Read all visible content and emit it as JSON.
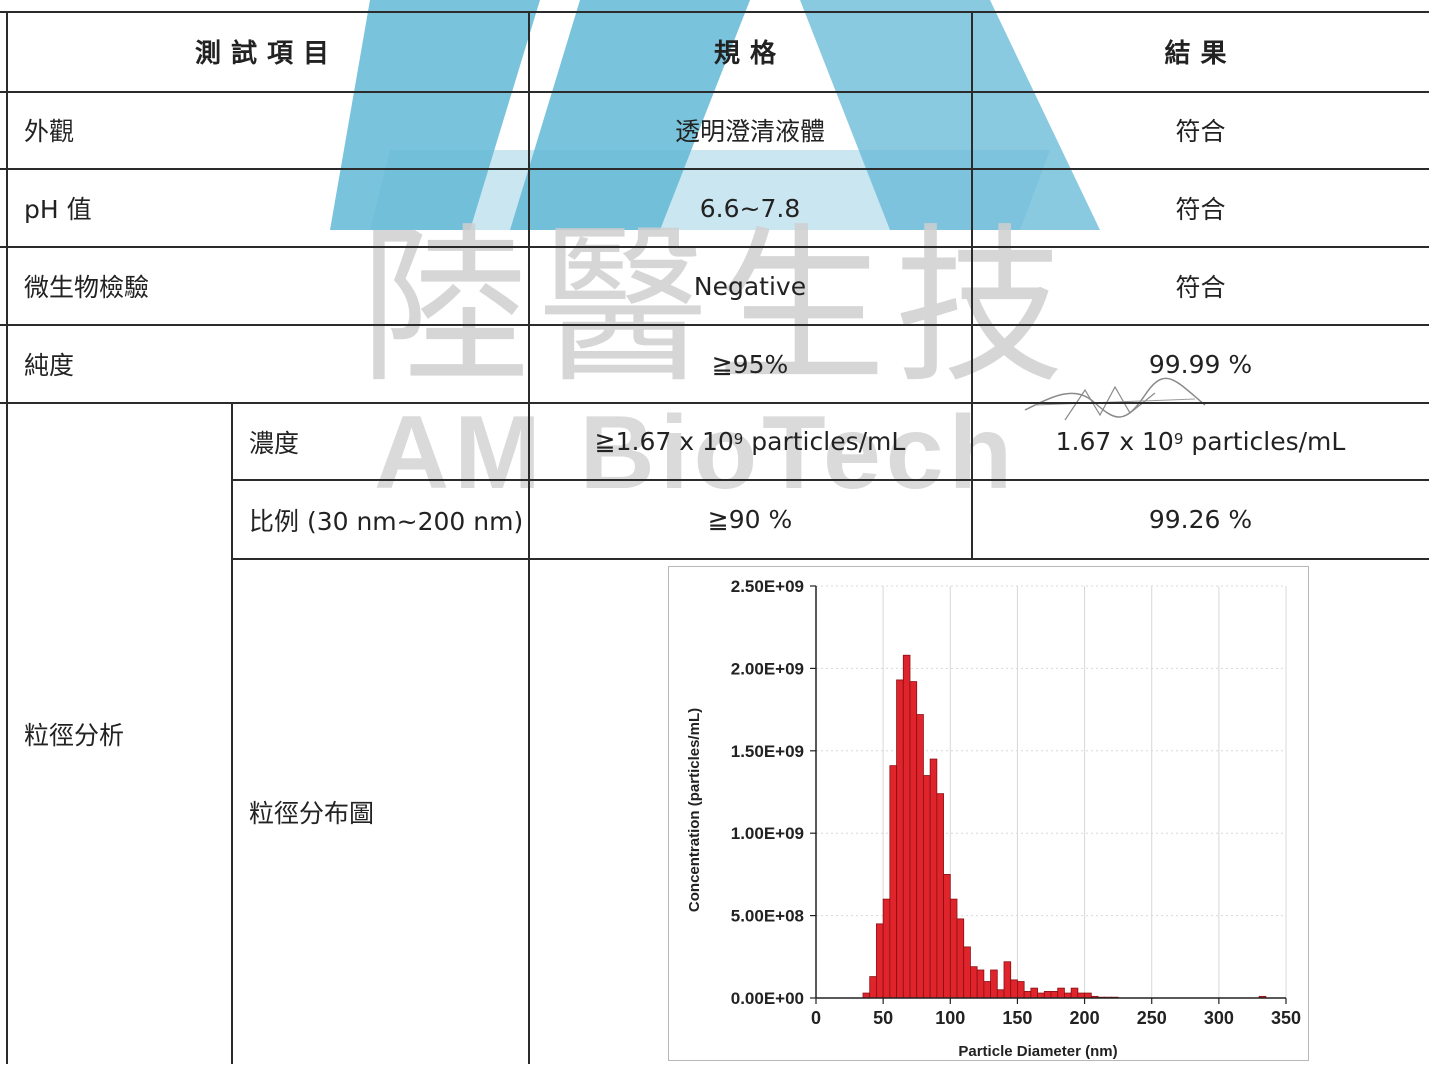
{
  "watermark": {
    "cjk_text": "陸醫生技",
    "latin_text": "AM BioTech",
    "logo_color": "#63b8d6"
  },
  "table": {
    "headers": {
      "item": "測試項目",
      "spec": "規格",
      "result": "結果"
    },
    "rows": [
      {
        "item": "外觀",
        "spec": "透明澄清液體",
        "result": "符合"
      },
      {
        "item": "pH 值",
        "spec": "6.6~7.8",
        "result": "符合"
      },
      {
        "item": "微生物檢驗",
        "spec": "Negative",
        "result": "符合"
      },
      {
        "item": "純度",
        "spec": "≧95%",
        "result": "99.99 %"
      }
    ],
    "particle_analysis": {
      "group_label": "粒徑分析",
      "concentration": {
        "label": "濃度",
        "spec_prefix": "≧1.67 x 10",
        "spec_exp": "9",
        "spec_suffix": " particles/mL",
        "result_prefix": "1.67 x 10",
        "result_exp": "9",
        "result_suffix": " particles/mL"
      },
      "ratio": {
        "label": "比例 (30 nm~200 nm)",
        "spec": "≧90 %",
        "result": "99.26 %"
      },
      "distribution": {
        "label": "粒徑分布圖"
      }
    }
  },
  "chart_data": {
    "type": "bar",
    "xlabel": "Particle Diameter (nm)",
    "ylabel": "Concentration (particles/mL)",
    "xlim": [
      0,
      350
    ],
    "ylim": [
      0,
      2500000000
    ],
    "x_ticks": [
      "0",
      "50",
      "100",
      "150",
      "200",
      "250",
      "300",
      "350"
    ],
    "y_ticks": [
      "0.00E+00",
      "5.00E+08",
      "1.00E+09",
      "1.50E+09",
      "2.00E+09",
      "2.50E+09"
    ],
    "bar_color": "#e0242c",
    "grid": true,
    "bin_width": 5,
    "x": [
      35,
      40,
      45,
      50,
      55,
      60,
      65,
      70,
      75,
      80,
      85,
      90,
      95,
      100,
      105,
      110,
      115,
      120,
      125,
      130,
      135,
      140,
      145,
      150,
      155,
      160,
      165,
      170,
      175,
      180,
      185,
      190,
      195,
      200,
      205,
      210,
      215,
      220,
      330
    ],
    "values": [
      30000000,
      130000000,
      450000000,
      600000000,
      1410000000,
      1930000000,
      2080000000,
      1920000000,
      1720000000,
      1350000000,
      1450000000,
      1240000000,
      750000000,
      600000000,
      480000000,
      310000000,
      190000000,
      170000000,
      100000000,
      170000000,
      50000000,
      220000000,
      110000000,
      100000000,
      40000000,
      60000000,
      30000000,
      40000000,
      40000000,
      60000000,
      30000000,
      60000000,
      30000000,
      30000000,
      10000000,
      5000000,
      5000000,
      5000000,
      10000000
    ]
  }
}
